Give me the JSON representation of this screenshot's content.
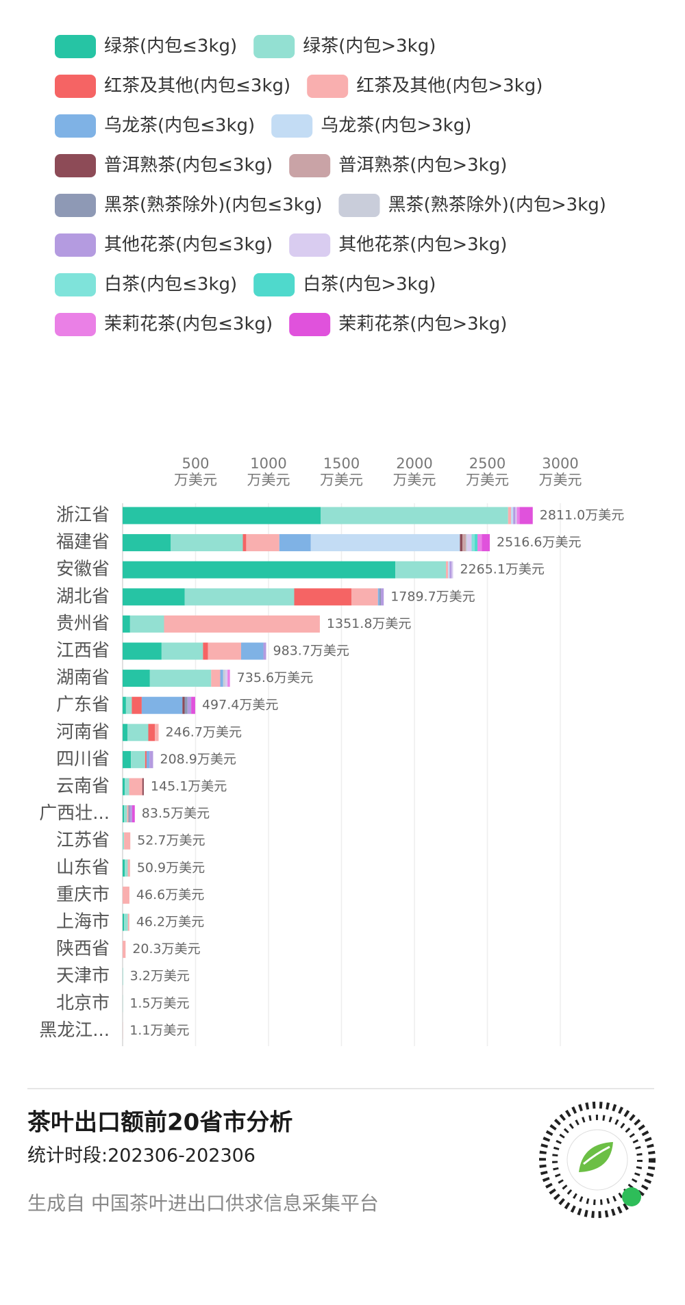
{
  "chart_data": {
    "type": "stacked_barh",
    "title": "茶叶出口额前20省市分析",
    "subtitle": "统计时段:202306-202306",
    "source": "生成自 中国茶叶进出口供求信息采集平台",
    "categories": [
      "浙江省",
      "福建省",
      "安徽省",
      "湖北省",
      "贵州省",
      "江西省",
      "湖南省",
      "广东省",
      "河南省",
      "四川省",
      "云南省",
      "广西壮...",
      "江苏省",
      "山东省",
      "重庆市",
      "上海市",
      "陕西省",
      "天津市",
      "北京市",
      "黑龙江..."
    ],
    "xlim": [
      0,
      3000
    ],
    "xticks": [
      {
        "value": 500,
        "label": "500",
        "unit": "万美元"
      },
      {
        "value": 1000,
        "label": "1000",
        "unit": "万美元"
      },
      {
        "value": 1500,
        "label": "1500",
        "unit": "万美元"
      },
      {
        "value": 2000,
        "label": "2000",
        "unit": "万美元"
      },
      {
        "value": 2500,
        "label": "2500",
        "unit": "万美元"
      },
      {
        "value": 3000,
        "label": "3000",
        "unit": "万美元"
      }
    ],
    "grid": true,
    "totals": [
      2811.0,
      2516.6,
      2265.1,
      1789.7,
      1351.8,
      983.7,
      735.6,
      497.4,
      246.7,
      208.9,
      145.1,
      83.5,
      52.7,
      50.9,
      46.6,
      46.2,
      20.3,
      3.2,
      1.5,
      1.1
    ],
    "total_labels": [
      "2811.0万美元",
      "2516.6万美元",
      "2265.1万美元",
      "1789.7万美元",
      "1351.8万美元",
      "983.7万美元",
      "735.6万美元",
      "497.4万美元",
      "246.7万美元",
      "208.9万美元",
      "145.1万美元",
      "83.5万美元",
      "52.7万美元",
      "50.9万美元",
      "46.6万美元",
      "46.2万美元",
      "20.3万美元",
      "3.2万美元",
      "1.5万美元",
      "1.1万美元"
    ],
    "series": [
      {
        "name": "绿茶(内包≤3kg)",
        "color": "#26c4a4",
        "values": [
          1358,
          330,
          1869,
          426,
          51,
          267,
          187,
          23,
          34,
          57,
          15,
          10,
          0,
          15,
          0,
          10,
          0,
          0,
          0,
          0
        ]
      },
      {
        "name": "绿茶(内包>3kg)",
        "color": "#93e0d2",
        "values": [
          1284,
          494,
          347,
          750,
          233,
          284,
          420,
          40,
          142,
          97,
          30,
          20,
          10,
          20,
          0,
          26.2,
          0,
          3.2,
          1.5,
          0
        ]
      },
      {
        "name": "红茶及其他(内包≤3kg)",
        "color": "#f56464",
        "values": [
          0,
          23,
          0,
          392,
          0,
          34,
          0,
          68,
          45,
          10,
          0,
          0,
          0,
          0,
          0,
          0,
          0,
          0,
          0,
          0
        ]
      },
      {
        "name": "红茶及其他(内包>3kg)",
        "color": "#f9afaf",
        "values": [
          20,
          227,
          15,
          182,
          1067.8,
          227,
          62,
          0,
          25.7,
          0,
          90,
          10,
          42.7,
          15.9,
          46.6,
          10,
          20.3,
          0,
          0,
          1.1
        ]
      },
      {
        "name": "乌龙茶(内包≤3kg)",
        "color": "#7fb2e5",
        "values": [
          0,
          216,
          0,
          10,
          0,
          153,
          20,
          279,
          0,
          19.9,
          0,
          0,
          0,
          0,
          0,
          0,
          0,
          0,
          0,
          0
        ]
      },
      {
        "name": "乌龙茶(内包>3kg)",
        "color": "#c3dcf4",
        "values": [
          15,
          1022,
          10,
          0,
          0,
          0,
          0,
          0,
          0,
          0,
          0,
          0,
          0,
          0,
          0,
          0,
          0,
          0,
          0,
          0
        ]
      },
      {
        "name": "普洱熟茶(内包≤3kg)",
        "color": "#8d4b57",
        "values": [
          0,
          17,
          0,
          0,
          0,
          0,
          0,
          15,
          0,
          0,
          10.1,
          0,
          0,
          0,
          0,
          0,
          0,
          0,
          0,
          0
        ]
      },
      {
        "name": "普洱熟茶(内包>3kg)",
        "color": "#c9a3a6",
        "values": [
          0,
          23,
          0,
          0,
          0,
          0,
          0,
          0,
          0,
          0,
          0,
          0,
          0,
          0,
          0,
          0,
          0,
          0,
          0,
          0
        ]
      },
      {
        "name": "黑茶(熟茶除外)(内包≤3kg)",
        "color": "#8e99b5",
        "values": [
          0,
          0,
          0,
          10,
          0,
          0,
          0,
          20,
          0,
          0,
          0,
          10,
          0,
          0,
          0,
          0,
          0,
          0,
          0,
          0
        ]
      },
      {
        "name": "黑茶(熟茶除外)(内包>3kg)",
        "color": "#c9cdda",
        "values": [
          0,
          10,
          0,
          0,
          0,
          0,
          15,
          0,
          0,
          0,
          0,
          0,
          0,
          0,
          0,
          0,
          0,
          0,
          0,
          0
        ]
      },
      {
        "name": "其他花茶(内包≤3kg)",
        "color": "#b49be0",
        "values": [
          15,
          0,
          14.1,
          19.7,
          0,
          18.7,
          0,
          25,
          0,
          25,
          0,
          15,
          0,
          0,
          0,
          0,
          0,
          0,
          0,
          0
        ]
      },
      {
        "name": "其他花茶(内包>3kg)",
        "color": "#d9ccf0",
        "values": [
          10,
          30,
          10,
          0,
          0,
          0,
          15,
          0,
          0,
          0,
          0,
          0,
          0,
          0,
          0,
          0,
          0,
          0,
          0,
          0
        ]
      },
      {
        "name": "白茶(内包≤3kg)",
        "color": "#7fe3da",
        "values": [
          0,
          20,
          0,
          0,
          0,
          0,
          0,
          0,
          0,
          0,
          0,
          0,
          0,
          0,
          0,
          0,
          0,
          0,
          0,
          0
        ]
      },
      {
        "name": "白茶(内包>3kg)",
        "color": "#4fd9cc",
        "values": [
          0,
          20,
          0,
          0,
          0,
          0,
          0,
          0,
          0,
          0,
          0,
          0,
          0,
          0,
          0,
          0,
          0,
          0,
          0,
          0
        ]
      },
      {
        "name": "茉莉花茶(内包≤3kg)",
        "color": "#ea80e6",
        "values": [
          19,
          30,
          0,
          0,
          0,
          0,
          16.6,
          0,
          0,
          0,
          0,
          0,
          0,
          0,
          0,
          0,
          0,
          0,
          0,
          0
        ]
      },
      {
        "name": "茉莉花茶(内包>3kg)",
        "color": "#e052dc",
        "values": [
          90,
          54.6,
          0,
          0,
          0,
          0,
          0,
          27.4,
          0,
          0,
          0,
          18.5,
          0,
          0,
          0,
          0,
          0,
          0,
          0,
          0
        ]
      }
    ]
  }
}
